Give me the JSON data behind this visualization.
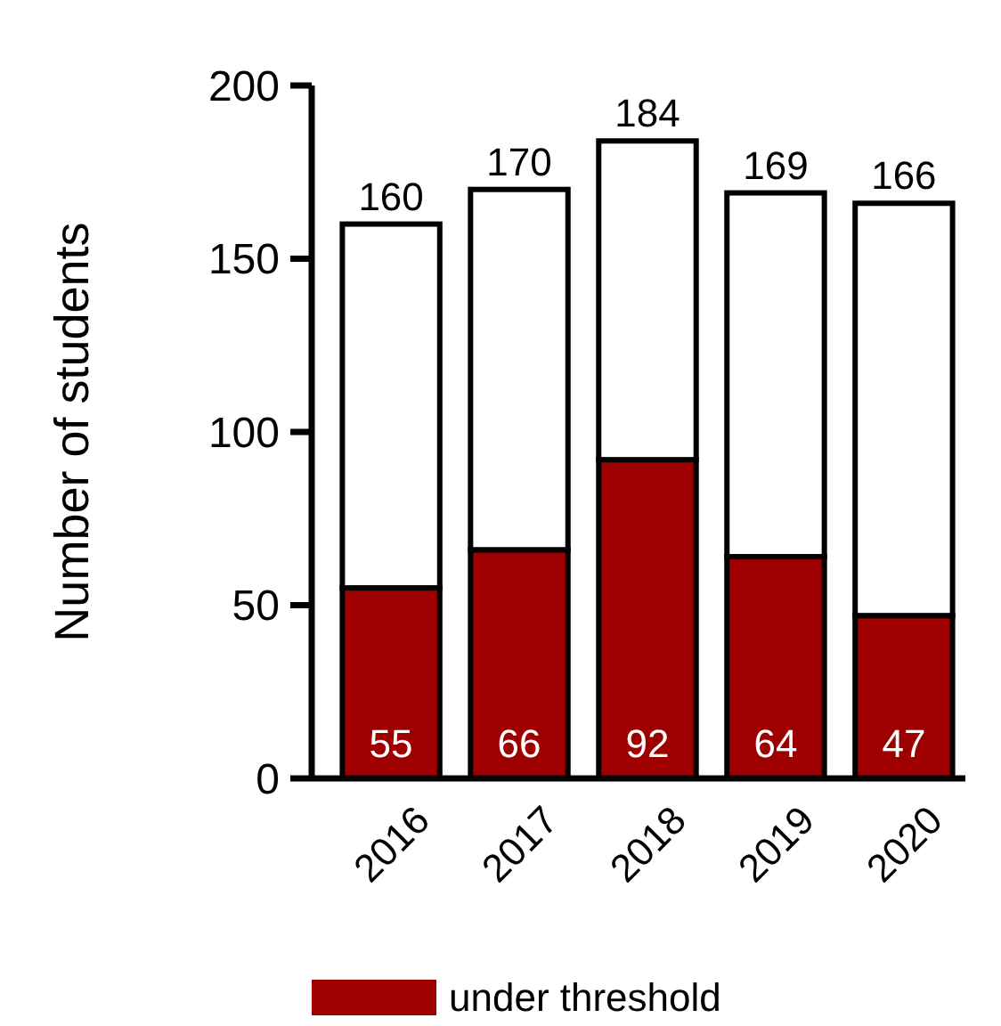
{
  "chart_data": {
    "type": "bar",
    "ylabel": "Number of students",
    "categories": [
      "2016",
      "2017",
      "2018",
      "2019",
      "2020"
    ],
    "stacked": true,
    "series": [
      {
        "name": "under threshold",
        "color": "#9e0000",
        "values": [
          55,
          66,
          92,
          64,
          47
        ],
        "value_labels": [
          "55",
          "66",
          "92",
          "64",
          "47"
        ]
      },
      {
        "color": "#ffffff",
        "values": [
          105,
          104,
          92,
          105,
          119
        ]
      }
    ],
    "totals": [
      "160",
      "170",
      "184",
      "169",
      "166"
    ],
    "ylim": [
      0,
      200
    ],
    "yticks": [
      0,
      50,
      100,
      150,
      200
    ],
    "grid": false,
    "legend": "bottom"
  }
}
